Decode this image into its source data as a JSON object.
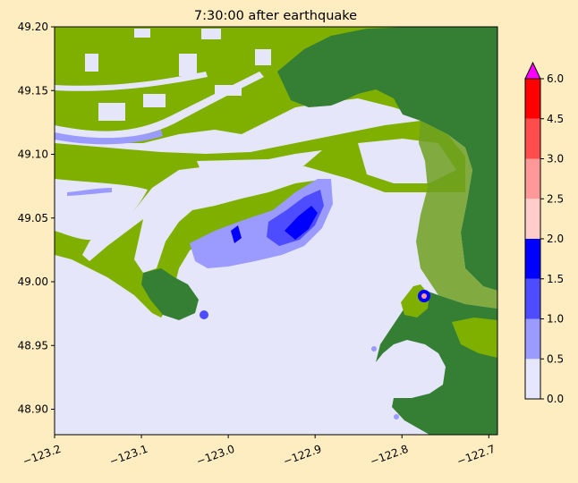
{
  "chart_data": {
    "type": "heatmap",
    "title": "7:30:00 after earthquake",
    "xlabel": "",
    "ylabel": "",
    "xlim": [
      -123.2,
      -122.69
    ],
    "ylim": [
      48.88,
      49.2
    ],
    "x_ticks": [
      -123.2,
      -123.1,
      -123.0,
      -122.9,
      -122.8,
      -122.7
    ],
    "x_tick_labels": [
      "−123.2",
      "−123.1",
      "−123.0",
      "−122.9",
      "−122.8",
      "−122.7"
    ],
    "y_ticks": [
      48.9,
      48.95,
      49.0,
      49.05,
      49.1,
      49.15,
      49.2
    ],
    "y_tick_labels": [
      "48.90",
      "48.95",
      "49.00",
      "49.05",
      "49.10",
      "49.15",
      "49.20"
    ],
    "colorbar": {
      "levels": [
        0.0,
        0.5,
        1.0,
        1.5,
        2.0,
        2.5,
        3.0,
        4.5,
        6.0
      ],
      "labels": [
        "0.0",
        "0.5",
        "1.0",
        "1.5",
        "2.0",
        "2.5",
        "3.0",
        "4.5",
        "6.0"
      ],
      "colors": [
        "#e6e6ff",
        "#9b9bff",
        "#4d4dff",
        "#0000ff",
        "#ffcccc",
        "#ff9999",
        "#ff4d4d",
        "#ff0000"
      ],
      "extend_color": "#ff00ff",
      "extend": "max"
    },
    "colors": {
      "water": "#e6e6fa",
      "low_land": "#7fb000",
      "high_land": "#357f35",
      "flood_light": "#9b9bff",
      "flood_medium": "#4d4dff",
      "flood_deep": "#0000ff"
    }
  }
}
